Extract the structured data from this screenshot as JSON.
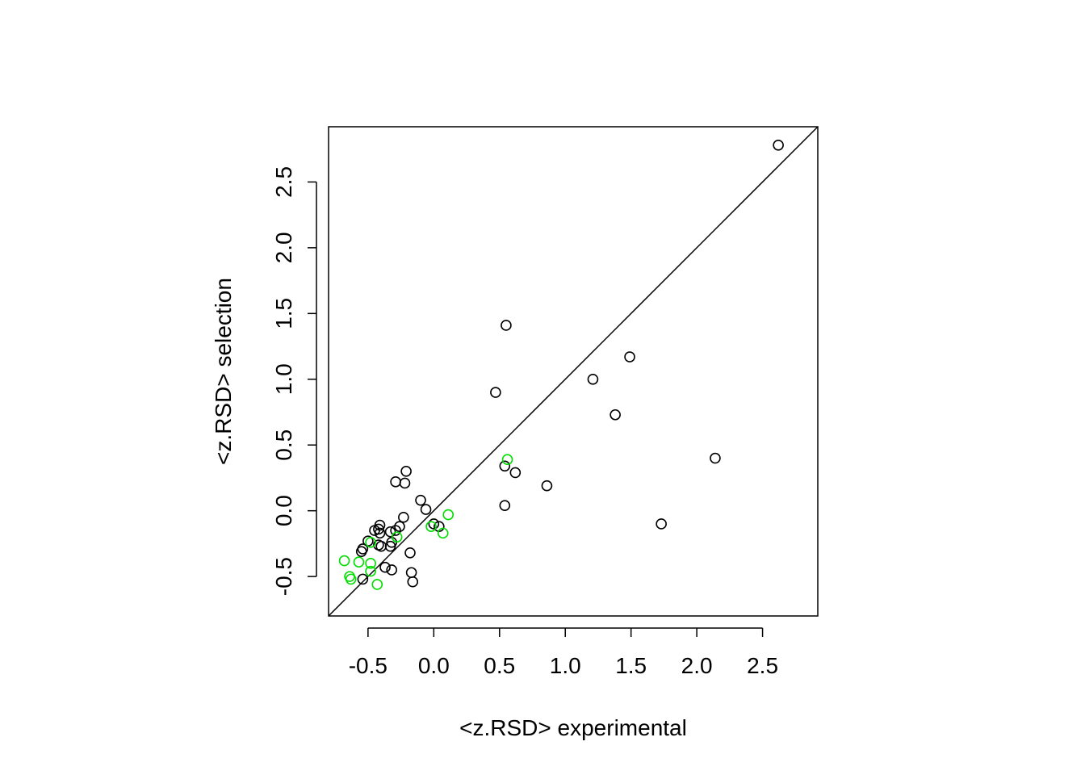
{
  "chart_data": {
    "type": "scatter",
    "title": "",
    "xlabel": "<z.RSD> experimental",
    "ylabel": "<z.RSD> selection",
    "xlim": [
      -0.8,
      2.92
    ],
    "ylim": [
      -0.8,
      2.92
    ],
    "xticks": [
      "-0.5",
      "0.0",
      "0.5",
      "1.0",
      "1.5",
      "2.0",
      "2.5"
    ],
    "yticks": [
      "-0.5",
      "0.0",
      "0.5",
      "1.0",
      "1.5",
      "2.0",
      "2.5"
    ],
    "grid": false,
    "reference_line": "y = x",
    "colors": {
      "series_black": "#000000",
      "series_green": "#00dd00",
      "line": "#000000"
    },
    "series": [
      {
        "color": "#000000",
        "points": [
          [
            2.62,
            2.78
          ],
          [
            0.55,
            1.41
          ],
          [
            1.49,
            1.17
          ],
          [
            1.21,
            1.0
          ],
          [
            0.47,
            0.9
          ],
          [
            1.38,
            0.73
          ],
          [
            2.14,
            0.4
          ],
          [
            0.54,
            0.34
          ],
          [
            0.62,
            0.29
          ],
          [
            0.86,
            0.19
          ],
          [
            0.54,
            0.04
          ],
          [
            1.73,
            -0.1
          ],
          [
            -0.21,
            0.3
          ],
          [
            -0.29,
            0.22
          ],
          [
            -0.22,
            0.21
          ],
          [
            -0.1,
            0.08
          ],
          [
            -0.06,
            0.01
          ],
          [
            -0.23,
            -0.05
          ],
          [
            -0.26,
            -0.12
          ],
          [
            0.0,
            -0.1
          ],
          [
            0.04,
            -0.12
          ],
          [
            -0.29,
            -0.15
          ],
          [
            -0.33,
            -0.16
          ],
          [
            -0.41,
            -0.11
          ],
          [
            -0.42,
            -0.14
          ],
          [
            -0.45,
            -0.15
          ],
          [
            -0.41,
            -0.17
          ],
          [
            -0.42,
            -0.26
          ],
          [
            -0.4,
            -0.27
          ],
          [
            -0.32,
            -0.24
          ],
          [
            -0.33,
            -0.27
          ],
          [
            -0.5,
            -0.23
          ],
          [
            -0.55,
            -0.31
          ],
          [
            -0.54,
            -0.29
          ],
          [
            -0.18,
            -0.32
          ],
          [
            -0.37,
            -0.43
          ],
          [
            -0.32,
            -0.45
          ],
          [
            -0.17,
            -0.47
          ],
          [
            -0.16,
            -0.54
          ],
          [
            -0.54,
            -0.52
          ]
        ]
      },
      {
        "color": "#00dd00",
        "points": [
          [
            0.56,
            0.39
          ],
          [
            0.11,
            -0.03
          ],
          [
            -0.02,
            -0.12
          ],
          [
            0.07,
            -0.17
          ],
          [
            -0.28,
            -0.2
          ],
          [
            -0.48,
            -0.24
          ],
          [
            -0.68,
            -0.38
          ],
          [
            -0.57,
            -0.39
          ],
          [
            -0.48,
            -0.4
          ],
          [
            -0.64,
            -0.5
          ],
          [
            -0.63,
            -0.52
          ],
          [
            -0.48,
            -0.46
          ],
          [
            -0.43,
            -0.56
          ]
        ]
      }
    ]
  }
}
